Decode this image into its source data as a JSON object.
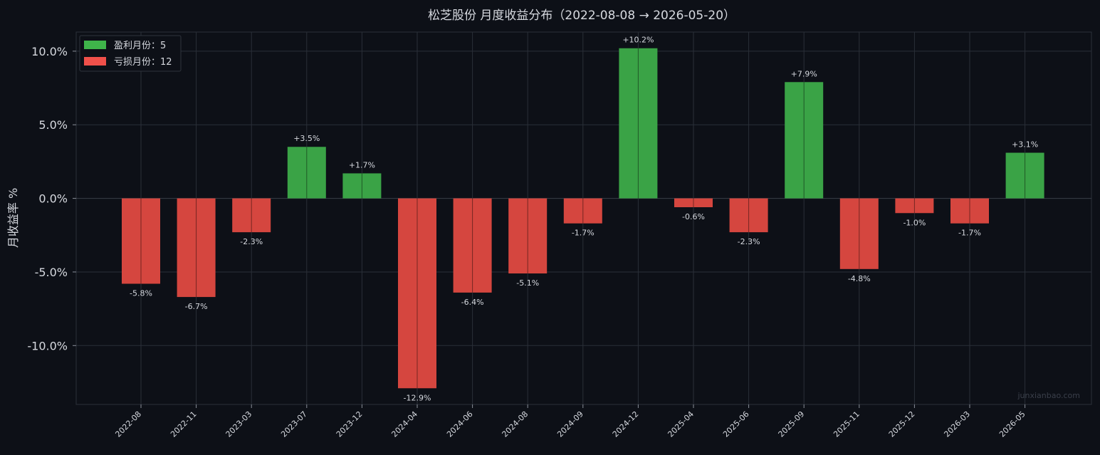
{
  "chart_data": {
    "type": "bar",
    "title": "松芝股份 月度收益分布（2022-08-08 → 2026-05-20）",
    "ylabel": "月收益率 %",
    "xlabel": "",
    "categories": [
      "2022-08",
      "2022-11",
      "2023-03",
      "2023-07",
      "2023-12",
      "2024-04",
      "2024-06",
      "2024-08",
      "2024-09",
      "2024-12",
      "2025-04",
      "2025-06",
      "2025-09",
      "2025-11",
      "2025-12",
      "2026-03",
      "2026-05"
    ],
    "values": [
      -5.8,
      -6.7,
      -2.3,
      3.5,
      1.7,
      -12.9,
      -6.4,
      -5.1,
      -1.7,
      10.2,
      -0.6,
      -2.3,
      7.9,
      -4.8,
      -1.0,
      -1.7,
      3.1
    ],
    "data_labels": [
      "-5.8%",
      "-6.7%",
      "-2.3%",
      "+3.5%",
      "+1.7%",
      "-12.9%",
      "-6.4%",
      "-5.1%",
      "-1.7%",
      "+10.2%",
      "-0.6%",
      "-2.3%",
      "+7.9%",
      "-4.8%",
      "-1.0%",
      "-1.7%",
      "+3.1%"
    ],
    "ylim": [
      -14,
      11.3
    ],
    "yticks": [
      10,
      5,
      0,
      -5,
      -10
    ],
    "ytick_labels": [
      "10.0%",
      "5.0%",
      "0.0%",
      "-5.0%",
      "-10.0%"
    ],
    "grid": true,
    "legend": {
      "placement": "top-left",
      "items": [
        {
          "label": "盈利月份：5",
          "color": "#3fb54a"
        },
        {
          "label": "亏损月份：12",
          "color": "#f0504a"
        }
      ]
    },
    "colors": {
      "positive": "#3aa346",
      "negative": "#d5463f",
      "background": "#0d1017",
      "grid": "#2a2f38"
    },
    "watermark": "junxianbao.com"
  }
}
